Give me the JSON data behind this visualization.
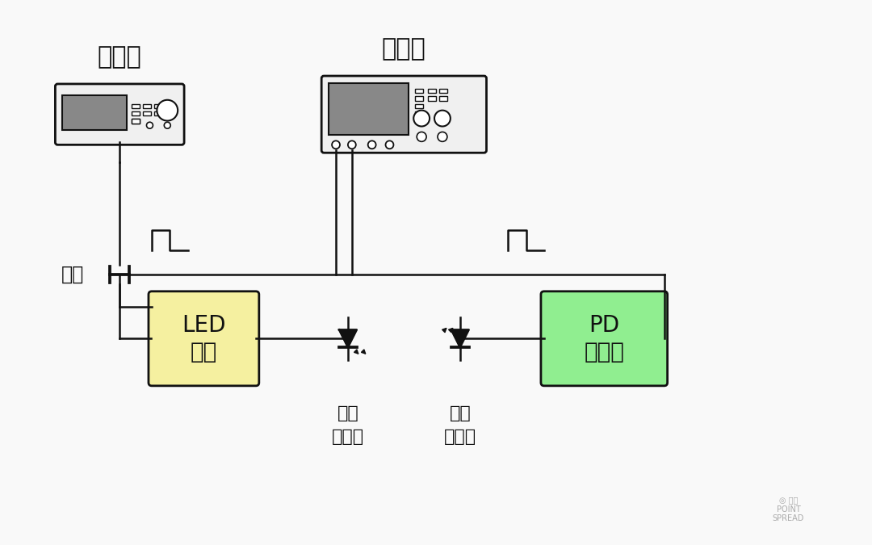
{
  "bg_color": "#f9f9f9",
  "line_color": "#111111",
  "led_box_color": "#f5f0a0",
  "pd_box_color": "#90ee90",
  "device_bg": "#e8e8e8",
  "device_border": "#333333",
  "screen_color": "#888888",
  "text_color": "#111111",
  "label_xinhaoyuan": "信号源",
  "label_shibo": "示波器",
  "label_santong": "三通",
  "label_led": "LED\n驱动",
  "label_pd": "PD\n放大器",
  "label_faguang1": "发光",
  "label_faguang2": "二极管",
  "label_guangmin1": "光敏",
  "label_guangmin2": "二极管"
}
